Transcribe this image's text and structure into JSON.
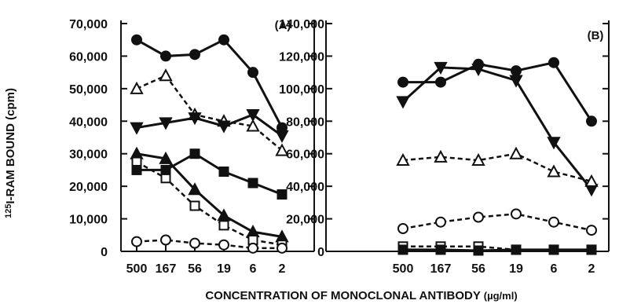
{
  "chart_data": [
    {
      "type": "line",
      "panel_label": "(A)",
      "ylabel": "125I-RAM BOUND (cpm)",
      "xlabel": "CONCENTRATION OF MONOCLONAL ANTIBODY (µg/ml)",
      "categories": [
        "500",
        "167",
        "56",
        "19",
        "6",
        "2"
      ],
      "ylim": [
        0,
        70000
      ],
      "yticks": [
        "0",
        "10,000",
        "20,000",
        "30,000",
        "40,000",
        "50,000",
        "60,000",
        "70,000"
      ],
      "grid": false,
      "series": [
        {
          "marker": "filled-circle",
          "line": "solid",
          "values": [
            65000,
            60000,
            60500,
            65000,
            55000,
            38000
          ]
        },
        {
          "marker": "open-triangle-up",
          "line": "dashed",
          "values": [
            50000,
            54000,
            42000,
            40000,
            38500,
            31000
          ]
        },
        {
          "marker": "filled-triangle-down",
          "line": "solid",
          "values": [
            38000,
            39500,
            41000,
            38500,
            42000,
            35500
          ]
        },
        {
          "marker": "filled-triangle-up",
          "line": "solid",
          "values": [
            30000,
            28500,
            19000,
            11000,
            6000,
            4500
          ]
        },
        {
          "marker": "open-square",
          "line": "dashed",
          "values": [
            27500,
            22500,
            14000,
            8000,
            3500,
            2000
          ]
        },
        {
          "marker": "filled-square",
          "line": "solid",
          "values": [
            25000,
            25000,
            30000,
            24500,
            21000,
            17500
          ]
        },
        {
          "marker": "open-circle",
          "line": "dashed",
          "values": [
            3000,
            3500,
            2500,
            2000,
            1000,
            1000
          ]
        }
      ]
    },
    {
      "type": "line",
      "panel_label": "(B)",
      "categories": [
        "500",
        "167",
        "56",
        "19",
        "6",
        "2"
      ],
      "ylim": [
        0,
        140000
      ],
      "yticks": [
        "0",
        "20,000",
        "40,000",
        "60,000",
        "80,000",
        "100,000",
        "120,000",
        "140,000"
      ],
      "grid": false,
      "series": [
        {
          "marker": "filled-circle",
          "line": "solid",
          "values": [
            104000,
            104000,
            115000,
            111000,
            116000,
            80000
          ]
        },
        {
          "marker": "filled-triangle-down",
          "line": "solid",
          "values": [
            92000,
            113000,
            112000,
            105000,
            67000,
            38000
          ]
        },
        {
          "marker": "open-triangle-up",
          "line": "dashed",
          "values": [
            56000,
            58000,
            56000,
            60000,
            49000,
            43000
          ]
        },
        {
          "marker": "open-circle",
          "line": "dashed",
          "values": [
            14000,
            18000,
            21000,
            23000,
            18000,
            13000
          ]
        },
        {
          "marker": "open-square",
          "line": "dashed",
          "values": [
            3000,
            3000,
            3000,
            1000,
            1000,
            1000
          ]
        },
        {
          "marker": "filled-square",
          "line": "solid",
          "values": [
            1000,
            1000,
            500,
            1000,
            1000,
            1000
          ]
        }
      ]
    }
  ],
  "labels": {
    "ylabel_base": "RAM BOUND (cpm)",
    "ylabel_sup": "125",
    "ylabel_i": "I-",
    "xlabel_main": "CONCENTRATION OF MONOCLONAL ANTIBODY",
    "xlabel_unit": "(µg/ml)"
  }
}
